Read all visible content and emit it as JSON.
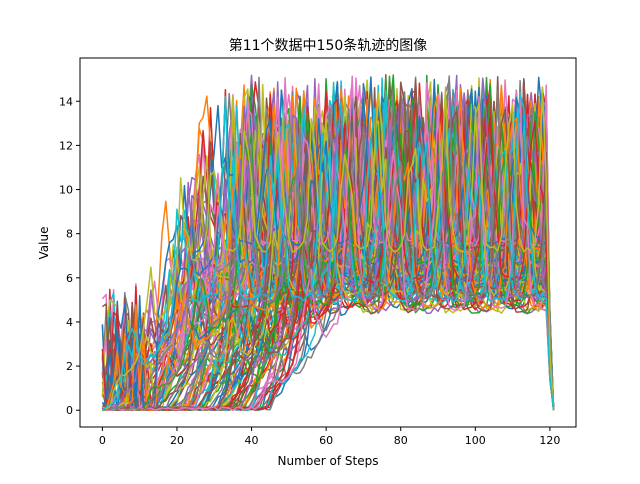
{
  "chart_data": {
    "type": "line",
    "title": "第11个数据中150条轨迹的图像",
    "xlabel": "Number of Steps",
    "ylabel": "Value",
    "xlim": [
      -6,
      127
    ],
    "ylim": [
      -0.76,
      15.96
    ],
    "xticks": [
      0,
      20,
      40,
      60,
      80,
      100,
      120
    ],
    "yticks": [
      0,
      2,
      4,
      6,
      8,
      10,
      12,
      14
    ],
    "x_range": [
      0,
      121
    ],
    "y_cap": 15.2,
    "n_series": 150,
    "grid": false,
    "legend": "none",
    "palette": [
      "#1f77b4",
      "#ff7f0e",
      "#2ca02c",
      "#d62728",
      "#9467bd",
      "#8c564b",
      "#e377c2",
      "#7f7f7f",
      "#bcbd22",
      "#17becf"
    ]
  }
}
